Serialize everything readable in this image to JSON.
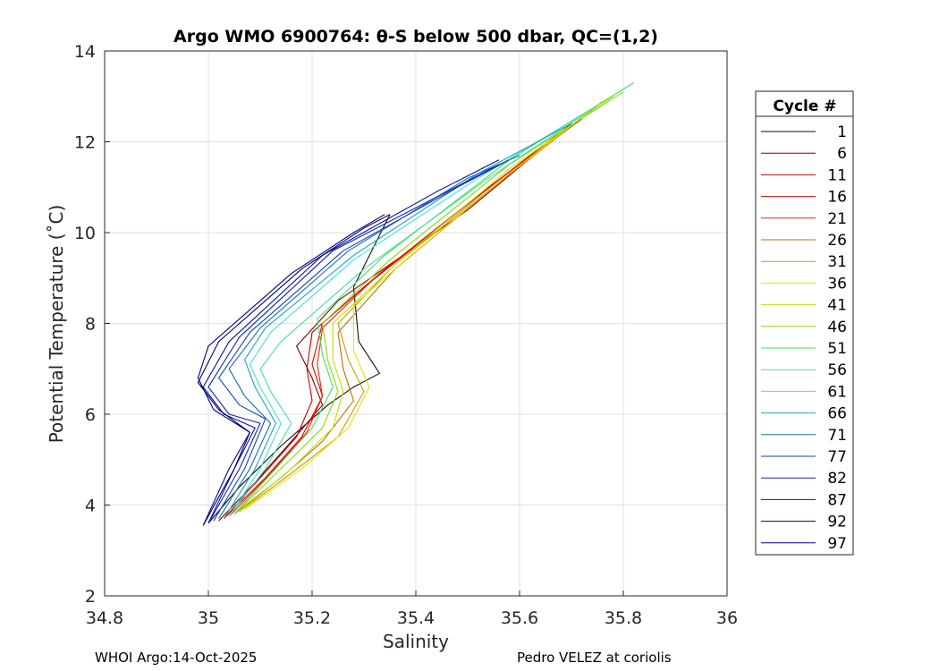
{
  "chart_data": {
    "type": "line",
    "title": "Argo WMO 6900764: θ-S below 500 dbar,  QC=(1,2)",
    "xlabel": "Salinity",
    "ylabel": "Potential Temperature (˚C)",
    "xlim": [
      34.8,
      36
    ],
    "ylim": [
      2,
      14
    ],
    "xticks": [
      34.8,
      35,
      35.2,
      35.4,
      35.6,
      35.8,
      36
    ],
    "yticks": [
      2,
      4,
      6,
      8,
      10,
      12,
      14
    ],
    "grid": true,
    "legend": {
      "title": "Cycle #",
      "placement": "outside-right",
      "entries": [
        "1",
        "6",
        "11",
        "16",
        "21",
        "26",
        "31",
        "36",
        "41",
        "46",
        "51",
        "56",
        "61",
        "66",
        "71",
        "77",
        "82",
        "87",
        "92",
        "97"
      ],
      "colors": [
        "#1a0a0a",
        "#7f0000",
        "#c00000",
        "#e00000",
        "#f02000",
        "#c07000",
        "#c0a000",
        "#f0e000",
        "#c0e000",
        "#80e000",
        "#40e060",
        "#40e0a0",
        "#40e0e0",
        "#20a0c0",
        "#1070b0",
        "#1040c0",
        "#1020c0",
        "#0010a0",
        "#000060",
        "#000090"
      ]
    },
    "series": [
      {
        "name": "1",
        "color": "#1a0a0a",
        "x": [
          35.0,
          35.06,
          35.14,
          35.23,
          35.28,
          35.33,
          35.29,
          35.28,
          35.35
        ],
        "y": [
          3.6,
          4.4,
          5.3,
          6.2,
          6.6,
          6.9,
          7.6,
          8.8,
          10.4
        ]
      },
      {
        "name": "6",
        "color": "#7f0000",
        "x": [
          35.02,
          35.09,
          35.16,
          35.22,
          35.2,
          35.17,
          35.25,
          35.5,
          35.68
        ],
        "y": [
          3.65,
          4.5,
          5.4,
          6.2,
          6.8,
          7.5,
          8.5,
          10.5,
          12.2
        ]
      },
      {
        "name": "11",
        "color": "#c00000",
        "x": [
          35.03,
          35.1,
          35.17,
          35.2,
          35.19,
          35.2,
          35.3,
          35.52,
          35.7
        ],
        "y": [
          3.7,
          4.6,
          5.5,
          6.3,
          7.0,
          7.8,
          8.8,
          10.8,
          12.4
        ]
      },
      {
        "name": "16",
        "color": "#e00000",
        "x": [
          35.03,
          35.11,
          35.18,
          35.22,
          35.2,
          35.22,
          35.32,
          35.53,
          35.7
        ],
        "y": [
          3.7,
          4.6,
          5.5,
          6.4,
          7.1,
          8.0,
          9.0,
          10.9,
          12.4
        ]
      },
      {
        "name": "21",
        "color": "#f02000",
        "x": [
          35.04,
          35.12,
          35.19,
          35.22,
          35.21,
          35.22,
          35.33,
          35.54,
          35.72
        ],
        "y": [
          3.75,
          4.7,
          5.6,
          6.4,
          7.1,
          7.9,
          9.1,
          11.0,
          12.5
        ]
      },
      {
        "name": "26",
        "color": "#c07000",
        "x": [
          35.05,
          35.14,
          35.22,
          35.28,
          35.26,
          35.25,
          35.36,
          35.56,
          35.74
        ],
        "y": [
          3.8,
          4.6,
          5.4,
          6.3,
          7.0,
          7.8,
          9.2,
          11.1,
          12.7
        ]
      },
      {
        "name": "31",
        "color": "#c0a000",
        "x": [
          35.06,
          35.16,
          35.25,
          35.3,
          35.27,
          35.25,
          35.36,
          35.57,
          35.75
        ],
        "y": [
          3.85,
          4.7,
          5.5,
          6.5,
          7.2,
          8.0,
          9.3,
          11.2,
          12.8
        ]
      },
      {
        "name": "36",
        "color": "#f0e000",
        "x": [
          35.07,
          35.18,
          35.27,
          35.31,
          35.28,
          35.28,
          35.38,
          35.58,
          35.76
        ],
        "y": [
          3.9,
          4.8,
          5.7,
          6.6,
          7.4,
          8.4,
          9.4,
          11.3,
          12.9
        ]
      },
      {
        "name": "41",
        "color": "#c0e000",
        "x": [
          35.06,
          35.16,
          35.24,
          35.26,
          35.24,
          35.24,
          35.37,
          35.58,
          35.78
        ],
        "y": [
          3.85,
          4.8,
          5.7,
          6.5,
          7.2,
          8.0,
          9.4,
          11.4,
          13.0
        ]
      },
      {
        "name": "46",
        "color": "#80e000",
        "x": [
          35.05,
          35.14,
          35.22,
          35.25,
          35.23,
          35.22,
          35.35,
          35.58,
          35.8
        ],
        "y": [
          3.8,
          4.8,
          5.7,
          6.5,
          7.2,
          8.0,
          9.4,
          11.5,
          13.1
        ]
      },
      {
        "name": "51",
        "color": "#40e060",
        "x": [
          35.05,
          35.13,
          35.2,
          35.24,
          35.22,
          35.21,
          35.34,
          35.58,
          35.82
        ],
        "y": [
          3.8,
          4.8,
          5.7,
          6.6,
          7.3,
          8.1,
          9.5,
          11.6,
          13.3
        ]
      },
      {
        "name": "56",
        "color": "#40e0a0",
        "x": [
          35.04,
          35.11,
          35.16,
          35.12,
          35.1,
          35.14,
          35.3,
          35.54,
          35.75
        ],
        "y": [
          3.75,
          4.8,
          5.8,
          6.5,
          7.0,
          7.6,
          9.2,
          11.2,
          12.8
        ]
      },
      {
        "name": "61",
        "color": "#40e0e0",
        "x": [
          35.04,
          35.1,
          35.14,
          35.1,
          35.08,
          35.12,
          35.28,
          35.52,
          35.72
        ],
        "y": [
          3.75,
          4.8,
          5.8,
          6.6,
          7.1,
          7.8,
          9.4,
          11.2,
          12.6
        ]
      },
      {
        "name": "66",
        "color": "#20a0c0",
        "x": [
          35.03,
          35.09,
          35.13,
          35.09,
          35.07,
          35.11,
          35.28,
          35.52,
          35.7
        ],
        "y": [
          3.7,
          4.8,
          5.8,
          6.6,
          7.2,
          7.9,
          9.5,
          11.3,
          12.4
        ]
      },
      {
        "name": "71",
        "color": "#1070b0",
        "x": [
          35.02,
          35.08,
          35.12,
          35.07,
          35.04,
          35.1,
          35.27,
          35.5,
          35.6
        ],
        "y": [
          3.7,
          4.8,
          5.8,
          6.4,
          7.0,
          7.9,
          9.6,
          11.2,
          11.7
        ]
      },
      {
        "name": "77",
        "color": "#1040c0",
        "x": [
          35.01,
          35.07,
          35.11,
          35.06,
          35.02,
          35.08,
          35.26,
          35.48,
          35.58
        ],
        "y": [
          3.65,
          4.8,
          5.9,
          6.2,
          6.8,
          7.8,
          9.6,
          11.0,
          11.6
        ]
      },
      {
        "name": "82",
        "color": "#1020c0",
        "x": [
          35.0,
          35.06,
          35.1,
          35.04,
          35.0,
          35.06,
          35.24,
          35.46,
          35.56
        ],
        "y": [
          3.6,
          4.8,
          5.8,
          6.0,
          6.6,
          7.7,
          9.6,
          10.9,
          11.5
        ]
      },
      {
        "name": "87",
        "color": "#0010a0",
        "x": [
          35.0,
          35.05,
          35.09,
          35.03,
          34.99,
          35.04,
          35.22,
          35.44,
          35.56
        ],
        "y": [
          3.6,
          4.8,
          5.7,
          6.0,
          6.6,
          7.6,
          9.5,
          10.9,
          11.6
        ]
      },
      {
        "name": "92",
        "color": "#000060",
        "x": [
          34.99,
          35.05,
          35.08,
          35.02,
          34.98,
          35.02,
          35.18,
          35.3,
          35.35
        ],
        "y": [
          3.55,
          4.8,
          5.6,
          6.1,
          6.7,
          7.6,
          9.2,
          10.1,
          10.4
        ]
      },
      {
        "name": "97",
        "color": "#000090",
        "x": [
          34.99,
          35.04,
          35.08,
          35.01,
          34.98,
          35.0,
          35.16,
          35.28,
          35.34
        ],
        "y": [
          3.55,
          4.8,
          5.6,
          6.1,
          6.8,
          7.5,
          9.1,
          10.0,
          10.4
        ]
      }
    ]
  },
  "footer": {
    "left": "WHOI Argo:14-Oct-2025",
    "right": "Pedro VELEZ at coriolis"
  }
}
